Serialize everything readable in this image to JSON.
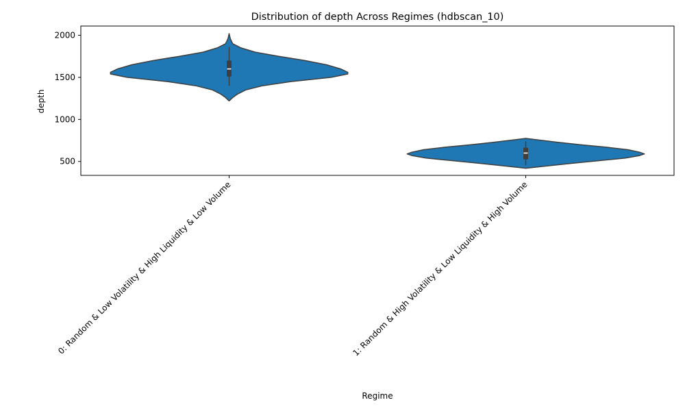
{
  "chart_data": {
    "type": "violin",
    "title": "Distribution of depth Across Regimes (hdbscan_10)",
    "xlabel": "Regime",
    "ylabel": "depth",
    "ylim": [
      335,
      2110
    ],
    "yticks": [
      500,
      1000,
      1500,
      2000
    ],
    "grid": false,
    "legend": "none",
    "colors": {
      "fill": "#1f77b4",
      "edge": "#3f3f3f",
      "box": "#3f3f3f",
      "median": "#ffffff"
    },
    "categories": [
      "0: Random & Low Volatility & High Liquidity & Low Volume",
      "1: Random & High Volatility & Low Liquidity & High Volume"
    ],
    "violins": [
      {
        "min": 1220,
        "max": 2020,
        "q1": 1510,
        "median": 1600,
        "q3": 1700,
        "whisker_low": 1400,
        "whisker_high": 1860,
        "density": [
          [
            1220,
            0.0
          ],
          [
            1260,
            0.03
          ],
          [
            1300,
            0.07
          ],
          [
            1350,
            0.14
          ],
          [
            1400,
            0.28
          ],
          [
            1450,
            0.52
          ],
          [
            1500,
            0.86
          ],
          [
            1540,
            1.0
          ],
          [
            1560,
            1.0
          ],
          [
            1600,
            0.94
          ],
          [
            1650,
            0.82
          ],
          [
            1700,
            0.64
          ],
          [
            1750,
            0.42
          ],
          [
            1800,
            0.22
          ],
          [
            1850,
            0.1
          ],
          [
            1900,
            0.03
          ],
          [
            1960,
            0.01
          ],
          [
            2020,
            0.0
          ]
        ]
      },
      {
        "min": 420,
        "max": 775,
        "q1": 525,
        "median": 600,
        "q3": 665,
        "whisker_low": 455,
        "whisker_high": 740,
        "density": [
          [
            420,
            0.0
          ],
          [
            450,
            0.2
          ],
          [
            480,
            0.4
          ],
          [
            510,
            0.62
          ],
          [
            540,
            0.84
          ],
          [
            570,
            0.96
          ],
          [
            590,
            1.0
          ],
          [
            610,
            0.96
          ],
          [
            640,
            0.86
          ],
          [
            670,
            0.68
          ],
          [
            700,
            0.46
          ],
          [
            730,
            0.26
          ],
          [
            760,
            0.08
          ],
          [
            775,
            0.0
          ]
        ]
      }
    ]
  }
}
